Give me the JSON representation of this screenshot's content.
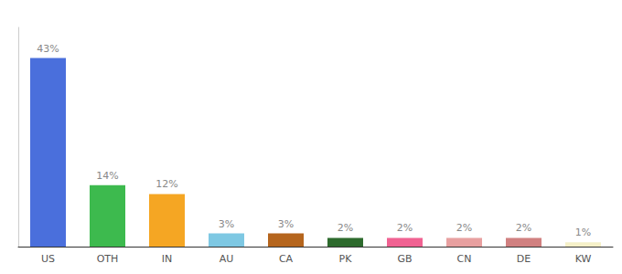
{
  "chart_data": {
    "type": "bar",
    "categories": [
      "US",
      "OTH",
      "IN",
      "AU",
      "CA",
      "PK",
      "GB",
      "CN",
      "DE",
      "KW"
    ],
    "values": [
      43,
      14,
      12,
      3,
      3,
      2,
      2,
      2,
      2,
      1
    ],
    "value_labels": [
      "43%",
      "14%",
      "12%",
      "3%",
      "3%",
      "2%",
      "2%",
      "2%",
      "2%",
      "1%"
    ],
    "colors": [
      "#4a6fdc",
      "#3dba4e",
      "#f5a623",
      "#7ec8e3",
      "#b5651d",
      "#2d6a2d",
      "#f06292",
      "#e8a0a0",
      "#d08080",
      "#f5f0c8"
    ],
    "ylim": [
      0,
      50
    ],
    "data_labels": true,
    "tick_labels": "x",
    "grid": false
  }
}
